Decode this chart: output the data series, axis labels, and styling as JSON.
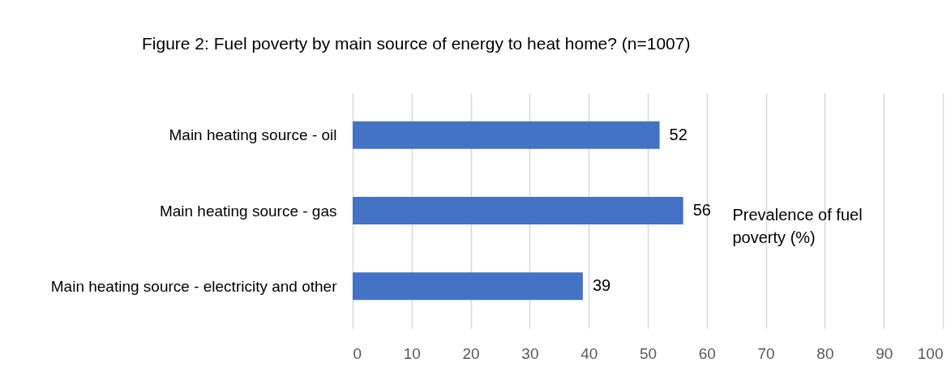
{
  "chart_data": {
    "type": "bar",
    "orientation": "horizontal",
    "title": "Figure 2: Fuel poverty by main source of energy to heat home? (n=1007)",
    "categories": [
      "Main heating source - oil",
      "Main heating source - gas",
      "Main heating source - electricity and other"
    ],
    "values": [
      52,
      56,
      39
    ],
    "color": "#4472c4",
    "xlabel": "Prevalence of fuel poverty (%)",
    "xlim": [
      0,
      100
    ],
    "xticks": [
      0,
      10,
      20,
      30,
      40,
      50,
      60,
      70,
      80,
      90,
      100
    ],
    "grid": "x",
    "data_labels": true
  }
}
